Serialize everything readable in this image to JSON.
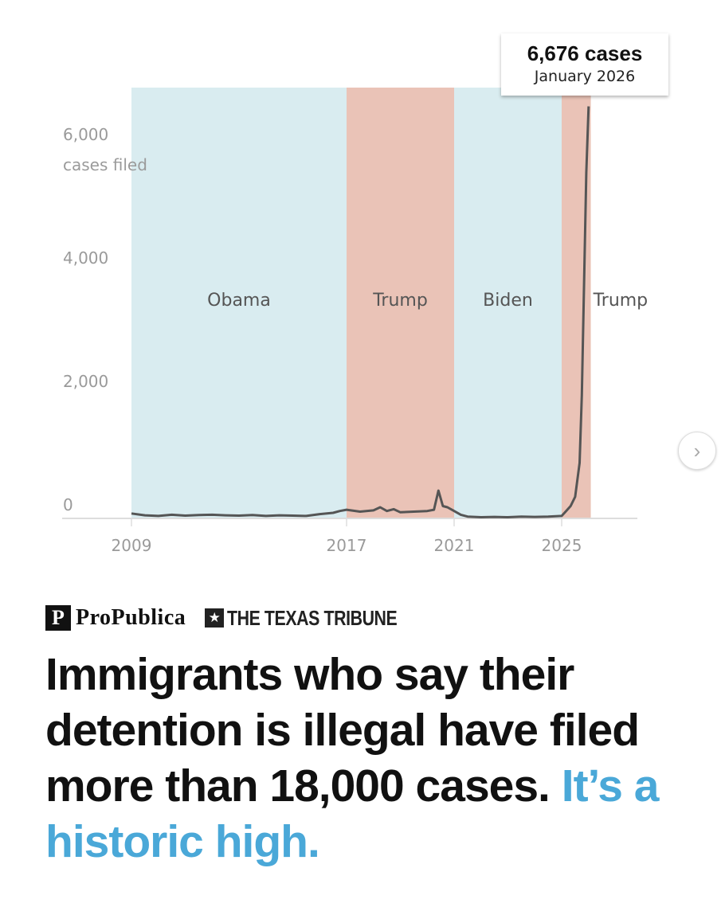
{
  "chart_data": {
    "type": "line",
    "ylabel": "cases filed",
    "ylim": [
      0,
      7000
    ],
    "yticks": [
      {
        "value": 0,
        "label": "0"
      },
      {
        "value": 2000,
        "label": "2,000"
      },
      {
        "value": 4000,
        "label": "4,000"
      },
      {
        "value": 6000,
        "label": "6,000"
      }
    ],
    "xticks": [
      "2009",
      "2017",
      "2021",
      "2025"
    ],
    "xlim": [
      "2009-01",
      "2026-06"
    ],
    "grid": false,
    "eras": [
      {
        "label": "Obama",
        "start": "2009-01",
        "end": "2017-01",
        "color": "#d9ecf0"
      },
      {
        "label": "Trump",
        "start": "2017-01",
        "end": "2021-01",
        "color": "#eac3b7"
      },
      {
        "label": "Biden",
        "start": "2021-01",
        "end": "2025-01",
        "color": "#d9ecf0"
      },
      {
        "label": "Trump",
        "start": "2025-01",
        "end": "2026-02",
        "color": "#eac3b7"
      }
    ],
    "line_color": "#555555",
    "points": [
      [
        "2009-01",
        80
      ],
      [
        "2009-07",
        50
      ],
      [
        "2010-01",
        40
      ],
      [
        "2010-07",
        60
      ],
      [
        "2011-01",
        45
      ],
      [
        "2011-07",
        55
      ],
      [
        "2012-01",
        60
      ],
      [
        "2012-07",
        50
      ],
      [
        "2013-01",
        45
      ],
      [
        "2013-07",
        55
      ],
      [
        "2014-01",
        40
      ],
      [
        "2014-07",
        50
      ],
      [
        "2015-01",
        45
      ],
      [
        "2015-07",
        40
      ],
      [
        "2016-01",
        70
      ],
      [
        "2016-07",
        90
      ],
      [
        "2016-10",
        120
      ],
      [
        "2017-01",
        140
      ],
      [
        "2017-07",
        110
      ],
      [
        "2018-01",
        130
      ],
      [
        "2018-04",
        180
      ],
      [
        "2018-07",
        120
      ],
      [
        "2018-10",
        150
      ],
      [
        "2019-01",
        100
      ],
      [
        "2019-07",
        110
      ],
      [
        "2020-01",
        120
      ],
      [
        "2020-04",
        140
      ],
      [
        "2020-06",
        450
      ],
      [
        "2020-08",
        200
      ],
      [
        "2020-10",
        180
      ],
      [
        "2021-01",
        120
      ],
      [
        "2021-04",
        60
      ],
      [
        "2021-07",
        30
      ],
      [
        "2022-01",
        20
      ],
      [
        "2022-07",
        25
      ],
      [
        "2023-01",
        20
      ],
      [
        "2023-07",
        30
      ],
      [
        "2024-01",
        25
      ],
      [
        "2024-07",
        30
      ],
      [
        "2025-01",
        40
      ],
      [
        "2025-03",
        120
      ],
      [
        "2025-05",
        200
      ],
      [
        "2025-07",
        350
      ],
      [
        "2025-09",
        900
      ],
      [
        "2025-10",
        2000
      ],
      [
        "2025-11",
        3800
      ],
      [
        "2025-12",
        5600
      ],
      [
        "2026-01",
        6676
      ]
    ],
    "annotation": {
      "value": "6,676 cases",
      "date": "January 2026"
    }
  },
  "logos": {
    "propublica": "ProPublica",
    "texas_tribune": "THE TEXAS TRIBUNE"
  },
  "headline": {
    "main": "Immigrants who say their detention is illegal have filed more than 18,000 cases.",
    "highlight": "It’s a historic high."
  },
  "nav": {
    "next_icon": "chevron-right-icon"
  }
}
